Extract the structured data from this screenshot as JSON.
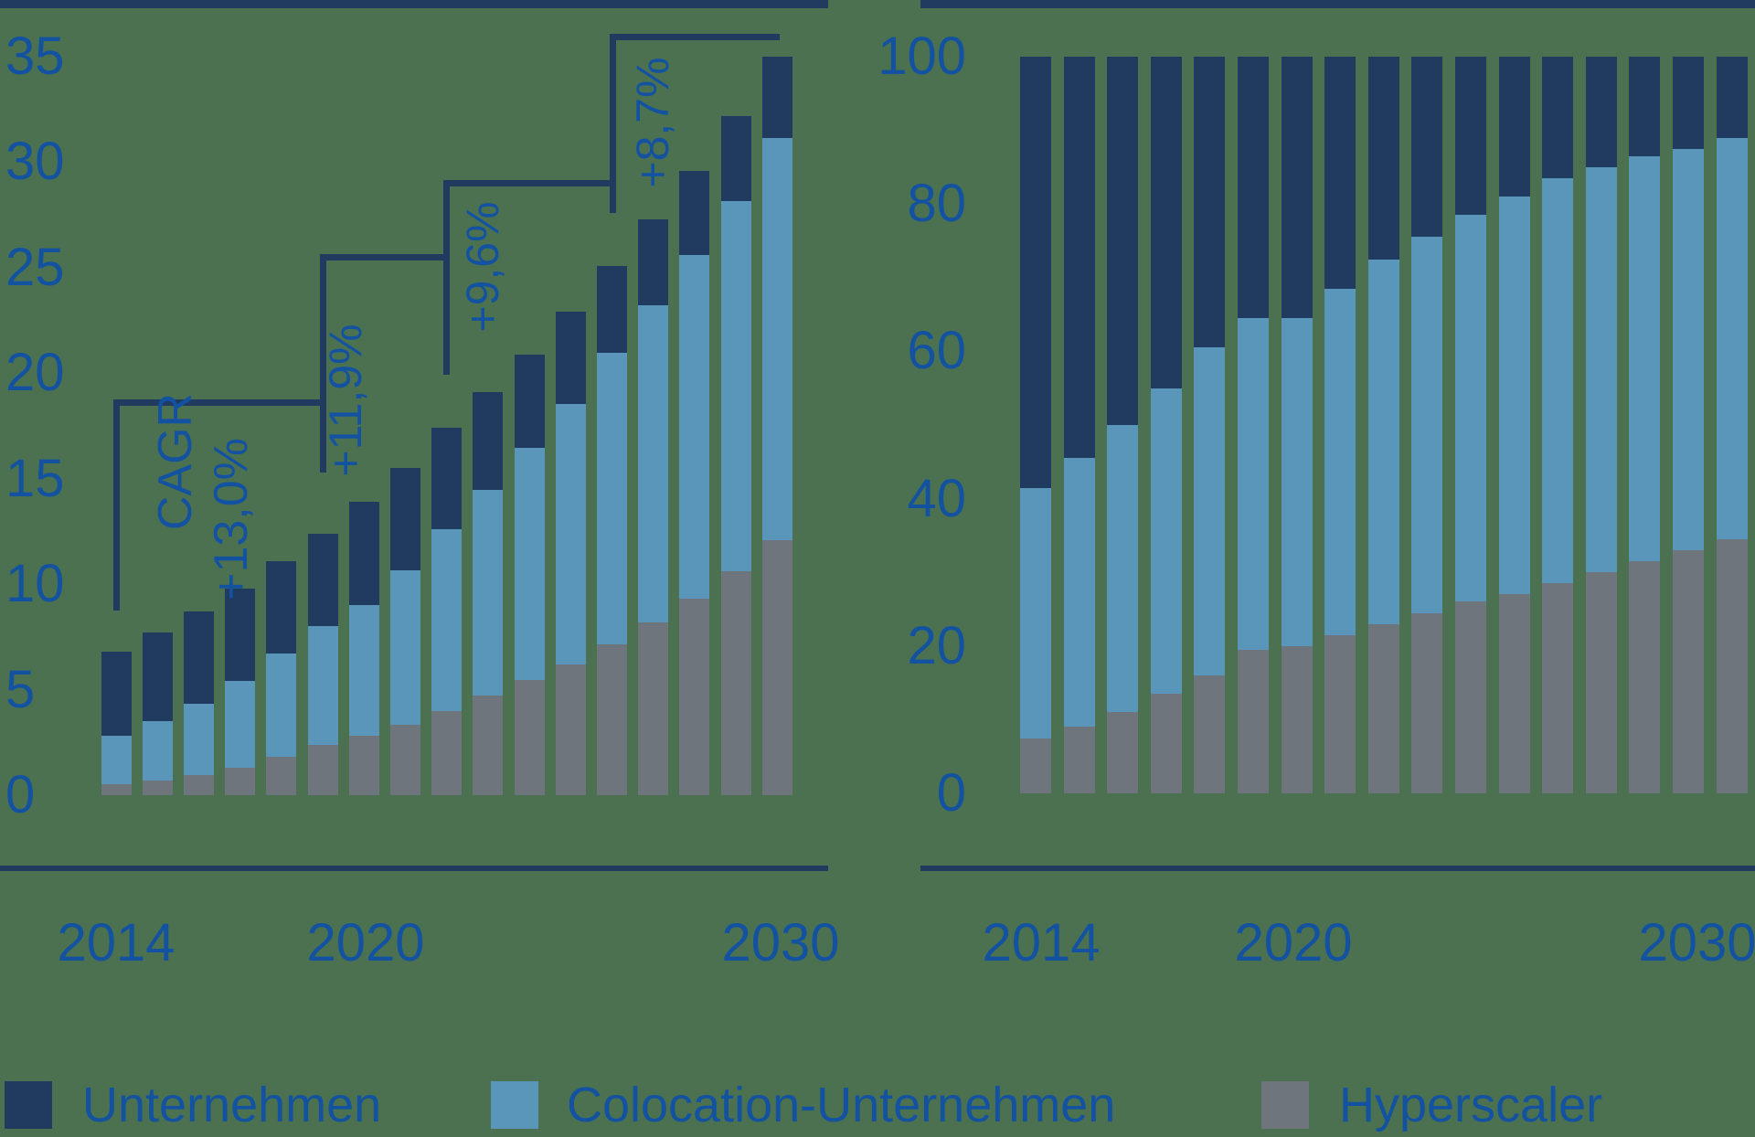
{
  "background_color": "#4b7151",
  "colors": {
    "navy": "#203a60",
    "blue": "#5996ba",
    "gray": "#6e757d",
    "text": "#1252a1"
  },
  "legend": {
    "items": [
      {
        "label": "Unternehmen",
        "color_key": "navy"
      },
      {
        "label": "Colocation-Unternehmen",
        "color_key": "blue"
      },
      {
        "label": "Hyperscaler",
        "color_key": "gray"
      }
    ]
  },
  "cagr": {
    "title": "CAGR",
    "rates": [
      "+13,0%",
      "+11,9%",
      "+9,6%",
      "+8,7%"
    ]
  },
  "chart_data": [
    {
      "id": "absolute",
      "type": "bar",
      "stacked": true,
      "categories": [
        2014,
        2015,
        2016,
        2017,
        2018,
        2019,
        2020,
        2021,
        2022,
        2023,
        2024,
        2025,
        2026,
        2027,
        2028,
        2029,
        2030
      ],
      "series": [
        {
          "name": "Hyperscaler",
          "color_key": "gray",
          "values": [
            0.5,
            0.7,
            0.95,
            1.3,
            1.8,
            2.4,
            2.8,
            3.35,
            4.0,
            4.7,
            5.45,
            6.2,
            7.15,
            8.2,
            9.3,
            10.6,
            12.1
          ]
        },
        {
          "name": "Colocation-Unternehmen",
          "color_key": "blue",
          "values": [
            2.3,
            2.8,
            3.4,
            4.1,
            4.9,
            5.6,
            6.2,
            7.3,
            8.6,
            9.75,
            11.0,
            12.35,
            13.8,
            15.0,
            16.3,
            17.55,
            19.05
          ]
        },
        {
          "name": "Unternehmen",
          "color_key": "navy",
          "values": [
            4.0,
            4.2,
            4.35,
            4.4,
            4.4,
            4.4,
            4.9,
            4.85,
            4.8,
            4.65,
            4.45,
            4.35,
            4.15,
            4.1,
            4.0,
            4.05,
            3.85
          ]
        }
      ],
      "totals": [
        6.8,
        7.7,
        8.7,
        9.8,
        11.1,
        12.4,
        13.9,
        15.5,
        17.4,
        19.1,
        20.9,
        22.9,
        25.1,
        27.3,
        29.6,
        32.2,
        35.0
      ],
      "ylim": [
        0,
        35
      ],
      "yticks": [
        0,
        5,
        10,
        15,
        20,
        25,
        30,
        35
      ],
      "x_tick_labels": [
        "2014",
        "2020",
        "2030"
      ],
      "grid": false,
      "annotations": {
        "title": "CAGR",
        "periods": [
          {
            "from": 2014,
            "to": 2018,
            "label": "+13,0%"
          },
          {
            "from": 2019,
            "to": 2022,
            "label": "+11,9%"
          },
          {
            "from": 2022,
            "to": 2026,
            "label": "+9,6%"
          },
          {
            "from": 2026,
            "to": 2030,
            "label": "+8,7%"
          }
        ]
      }
    },
    {
      "id": "share-percent",
      "type": "bar",
      "stacked": true,
      "categories": [
        2014,
        2015,
        2016,
        2017,
        2018,
        2019,
        2020,
        2021,
        2022,
        2023,
        2024,
        2025,
        2026,
        2027,
        2028,
        2029,
        2030
      ],
      "series": [
        {
          "name": "Hyperscaler",
          "color_key": "gray",
          "values": [
            7.5,
            9,
            11,
            13.5,
            16,
            19.5,
            20,
            21.5,
            23,
            24.5,
            26,
            27,
            28.5,
            30,
            31.5,
            33,
            34.5
          ]
        },
        {
          "name": "Colocation-Unternehmen",
          "color_key": "blue",
          "values": [
            34,
            36.5,
            39,
            41.5,
            44.5,
            45,
            44.5,
            47,
            49.5,
            51,
            52.5,
            54,
            55,
            55,
            55,
            54.5,
            54.5
          ]
        },
        {
          "name": "Unternehmen",
          "color_key": "navy",
          "values": [
            58.5,
            54.5,
            50,
            45,
            39.5,
            35.5,
            35.5,
            31.5,
            27.5,
            24.5,
            21.5,
            19,
            16.5,
            15,
            13.5,
            12.5,
            11
          ]
        }
      ],
      "ylim": [
        0,
        100
      ],
      "yticks": [
        0,
        20,
        40,
        60,
        80,
        100
      ],
      "x_tick_labels": [
        "2014",
        "2020",
        "2030"
      ],
      "grid": false
    }
  ]
}
